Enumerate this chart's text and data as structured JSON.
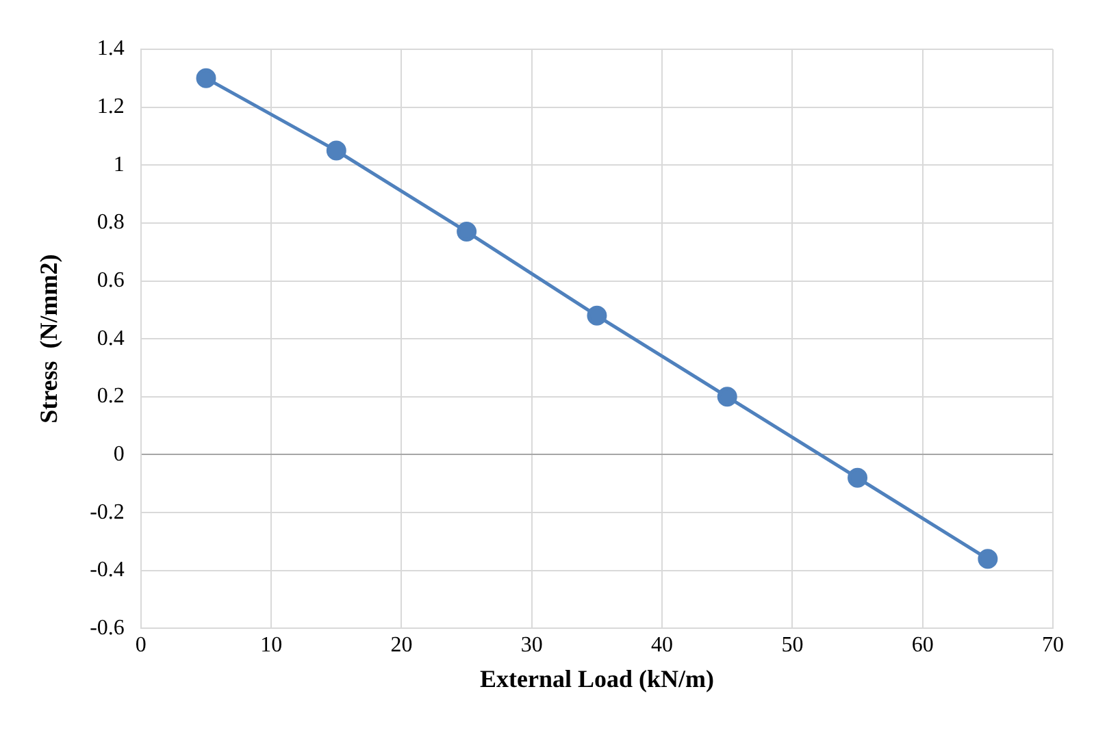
{
  "chart_data": {
    "type": "line",
    "xlabel": "External Load (kN/m)",
    "ylabel": "Stress  (N/mm2)",
    "x": [
      5,
      15,
      25,
      35,
      45,
      55,
      65
    ],
    "values": [
      1.3,
      1.05,
      0.77,
      0.48,
      0.2,
      -0.08,
      -0.36
    ],
    "color": "#4f81bd",
    "xlim": [
      0,
      70
    ],
    "xticks": [
      0,
      10,
      20,
      30,
      40,
      50,
      60,
      70
    ],
    "ylim": [
      -0.6,
      1.4
    ],
    "yticks": [
      -0.6,
      -0.4,
      -0.2,
      0,
      0.2,
      0.4,
      0.6,
      0.8,
      1,
      1.2,
      1.4
    ],
    "grid": true,
    "marker": "circle",
    "line_style": "solid"
  }
}
